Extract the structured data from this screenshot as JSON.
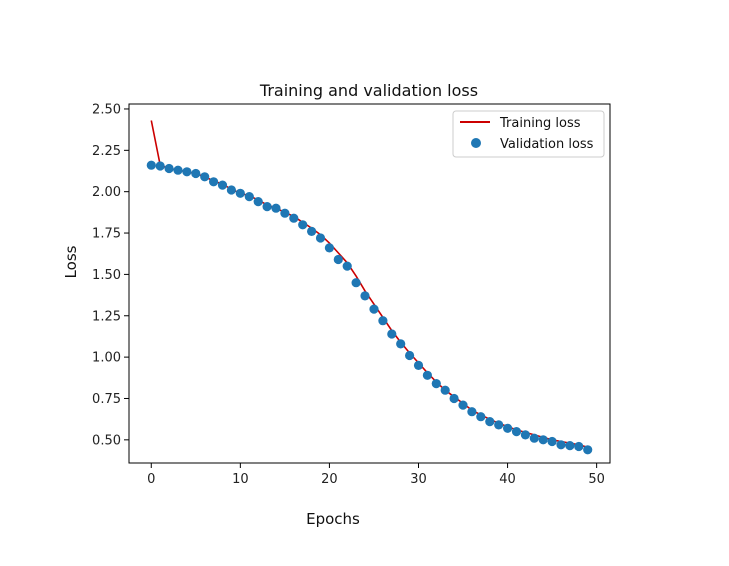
{
  "chart_data": {
    "type": "line",
    "title": "Training and validation loss",
    "xlabel": "Epochs",
    "ylabel": "Loss",
    "xlim": [
      -2.5,
      51.5
    ],
    "ylim": [
      0.36,
      2.53
    ],
    "xticks": [
      0,
      10,
      20,
      30,
      40,
      50
    ],
    "yticks": [
      0.5,
      0.75,
      1.0,
      1.25,
      1.5,
      1.75,
      2.0,
      2.25,
      2.5
    ],
    "xtick_labels": [
      "0",
      "10",
      "20",
      "30",
      "40",
      "50"
    ],
    "ytick_labels": [
      "0.50",
      "0.75",
      "1.00",
      "1.25",
      "1.50",
      "1.75",
      "2.00",
      "2.25",
      "2.50"
    ],
    "grid": false,
    "legend_position": "top-right",
    "x": [
      0,
      1,
      2,
      3,
      4,
      5,
      6,
      7,
      8,
      9,
      10,
      11,
      12,
      13,
      14,
      15,
      16,
      17,
      18,
      19,
      20,
      21,
      22,
      23,
      24,
      25,
      26,
      27,
      28,
      29,
      30,
      31,
      32,
      33,
      34,
      35,
      36,
      37,
      38,
      39,
      40,
      41,
      42,
      43,
      44,
      45,
      46,
      47,
      48,
      49
    ],
    "series": [
      {
        "name": "Training loss",
        "style": "line",
        "color": "#cc0000",
        "values": [
          2.43,
          2.16,
          2.14,
          2.13,
          2.12,
          2.11,
          2.09,
          2.065,
          2.045,
          2.015,
          1.99,
          1.975,
          1.95,
          1.92,
          1.9,
          1.875,
          1.85,
          1.815,
          1.78,
          1.74,
          1.69,
          1.63,
          1.57,
          1.49,
          1.4,
          1.32,
          1.24,
          1.16,
          1.09,
          1.025,
          0.965,
          0.905,
          0.85,
          0.8,
          0.76,
          0.72,
          0.68,
          0.65,
          0.625,
          0.6,
          0.58,
          0.56,
          0.545,
          0.53,
          0.515,
          0.5,
          0.49,
          0.48,
          0.47,
          0.455
        ]
      },
      {
        "name": "Validation loss",
        "style": "scatter",
        "color": "#1f77b4",
        "values": [
          2.16,
          2.155,
          2.14,
          2.13,
          2.12,
          2.11,
          2.09,
          2.06,
          2.04,
          2.01,
          1.99,
          1.97,
          1.94,
          1.91,
          1.9,
          1.87,
          1.84,
          1.8,
          1.76,
          1.72,
          1.66,
          1.59,
          1.55,
          1.45,
          1.37,
          1.29,
          1.22,
          1.14,
          1.08,
          1.01,
          0.95,
          0.89,
          0.84,
          0.8,
          0.75,
          0.71,
          0.67,
          0.64,
          0.61,
          0.59,
          0.57,
          0.55,
          0.53,
          0.51,
          0.5,
          0.49,
          0.47,
          0.465,
          0.46,
          0.44
        ]
      }
    ]
  }
}
